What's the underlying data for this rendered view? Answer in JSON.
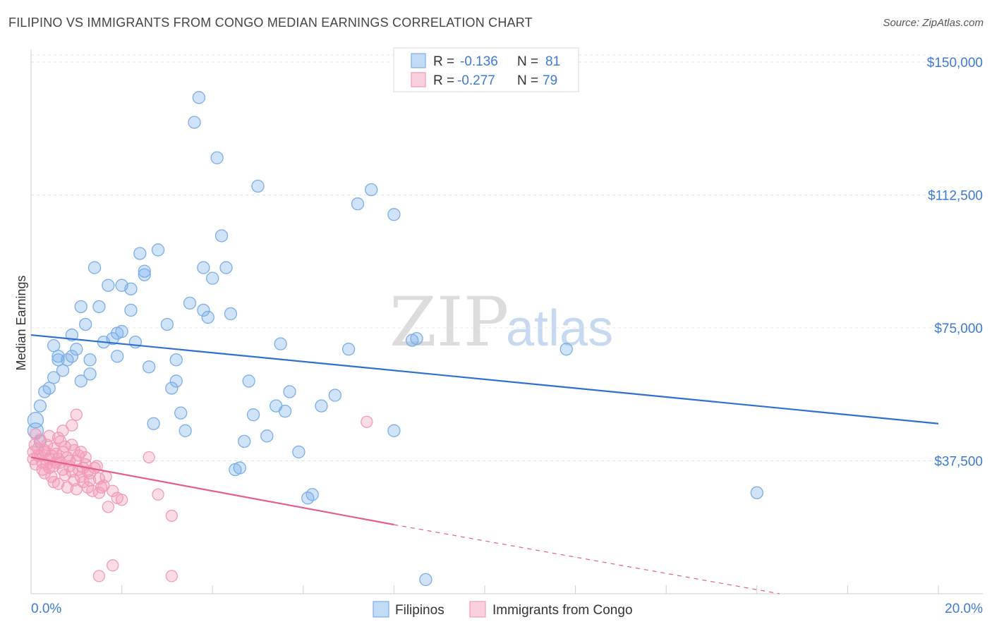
{
  "title": "FILIPINO VS IMMIGRANTS FROM CONGO MEDIAN EARNINGS CORRELATION CHART",
  "source": "Source: ZipAtlas.com",
  "watermark": {
    "part1": "ZIP",
    "part2": "atlas"
  },
  "legend": {
    "r_label": "R =",
    "n_label": "N =",
    "series": [
      {
        "r": "-0.136",
        "n": "81",
        "color": "#7aaee8"
      },
      {
        "r": "-0.277",
        "n": "79",
        "color": "#f29ab8"
      }
    ]
  },
  "bottom_legend": [
    "Filipinos",
    "Immigrants from Congo"
  ],
  "chart_data": {
    "type": "scatter",
    "title": "FILIPINO VS IMMIGRANTS FROM CONGO MEDIAN EARNINGS CORRELATION CHART",
    "xlabel": "",
    "ylabel": "Median Earnings",
    "xlim": [
      0,
      20
    ],
    "ylim": [
      0,
      152000
    ],
    "x_tick_labels": [
      "0.0%",
      "20.0%"
    ],
    "y_ticks": [
      37500,
      75000,
      112500,
      150000
    ],
    "y_tick_labels": [
      "$37,500",
      "$75,000",
      "$112,500",
      "$150,000"
    ],
    "grid": true,
    "legend_position": "top-center",
    "series": [
      {
        "name": "Filipinos",
        "color": "#7aaee8",
        "line_color": "#2f6fd0",
        "r": -0.136,
        "n": 81,
        "trend": {
          "x": [
            0,
            20
          ],
          "y": [
            73000,
            48000
          ]
        },
        "points": [
          {
            "x": 0.1,
            "y": 49000
          },
          {
            "x": 0.1,
            "y": 46000
          },
          {
            "x": 0.2,
            "y": 53000
          },
          {
            "x": 0.3,
            "y": 57000
          },
          {
            "x": 0.4,
            "y": 58000
          },
          {
            "x": 0.5,
            "y": 61000
          },
          {
            "x": 0.6,
            "y": 67000
          },
          {
            "x": 0.7,
            "y": 63000
          },
          {
            "x": 0.8,
            "y": 66000
          },
          {
            "x": 0.9,
            "y": 73000
          },
          {
            "x": 0.9,
            "y": 67000
          },
          {
            "x": 1.0,
            "y": 69000
          },
          {
            "x": 1.1,
            "y": 60000
          },
          {
            "x": 1.2,
            "y": 76000
          },
          {
            "x": 1.3,
            "y": 66000
          },
          {
            "x": 1.4,
            "y": 92000
          },
          {
            "x": 1.5,
            "y": 81000
          },
          {
            "x": 1.6,
            "y": 71000
          },
          {
            "x": 1.7,
            "y": 87000
          },
          {
            "x": 1.8,
            "y": 72000
          },
          {
            "x": 1.9,
            "y": 67000
          },
          {
            "x": 2.0,
            "y": 74000
          },
          {
            "x": 2.0,
            "y": 87000
          },
          {
            "x": 2.2,
            "y": 80000
          },
          {
            "x": 2.3,
            "y": 71000
          },
          {
            "x": 2.4,
            "y": 96000
          },
          {
            "x": 2.5,
            "y": 91000
          },
          {
            "x": 2.6,
            "y": 64000
          },
          {
            "x": 2.7,
            "y": 48000
          },
          {
            "x": 2.8,
            "y": 97000
          },
          {
            "x": 3.0,
            "y": 76000
          },
          {
            "x": 3.1,
            "y": 58000
          },
          {
            "x": 3.2,
            "y": 60000
          },
          {
            "x": 3.3,
            "y": 51000
          },
          {
            "x": 3.4,
            "y": 46000
          },
          {
            "x": 3.5,
            "y": 82000
          },
          {
            "x": 3.6,
            "y": 133000
          },
          {
            "x": 3.7,
            "y": 140000
          },
          {
            "x": 3.8,
            "y": 80000
          },
          {
            "x": 3.8,
            "y": 92000
          },
          {
            "x": 3.9,
            "y": 78000
          },
          {
            "x": 4.0,
            "y": 89000
          },
          {
            "x": 4.1,
            "y": 123000
          },
          {
            "x": 4.2,
            "y": 101000
          },
          {
            "x": 4.3,
            "y": 92000
          },
          {
            "x": 4.4,
            "y": 79000
          },
          {
            "x": 4.5,
            "y": 35000
          },
          {
            "x": 4.6,
            "y": 35500
          },
          {
            "x": 4.7,
            "y": 43000
          },
          {
            "x": 4.8,
            "y": 60000
          },
          {
            "x": 4.9,
            "y": 50500
          },
          {
            "x": 5.0,
            "y": 115000
          },
          {
            "x": 5.2,
            "y": 44500
          },
          {
            "x": 5.4,
            "y": 53000
          },
          {
            "x": 5.5,
            "y": 70500
          },
          {
            "x": 5.6,
            "y": 51500
          },
          {
            "x": 5.7,
            "y": 57000
          },
          {
            "x": 5.9,
            "y": 40000
          },
          {
            "x": 6.1,
            "y": 27000
          },
          {
            "x": 6.2,
            "y": 28000
          },
          {
            "x": 6.4,
            "y": 53000
          },
          {
            "x": 6.7,
            "y": 56000
          },
          {
            "x": 7.0,
            "y": 69000
          },
          {
            "x": 7.2,
            "y": 110000
          },
          {
            "x": 7.5,
            "y": 114000
          },
          {
            "x": 8.0,
            "y": 107000
          },
          {
            "x": 8.0,
            "y": 46000
          },
          {
            "x": 8.4,
            "y": 71500
          },
          {
            "x": 8.5,
            "y": 72000
          },
          {
            "x": 8.7,
            "y": 4000
          },
          {
            "x": 11.8,
            "y": 69000
          },
          {
            "x": 16.0,
            "y": 28500
          },
          {
            "x": 0.2,
            "y": 43000
          },
          {
            "x": 0.6,
            "y": 66000
          },
          {
            "x": 1.3,
            "y": 62000
          },
          {
            "x": 1.9,
            "y": 73500
          },
          {
            "x": 2.2,
            "y": 86000
          },
          {
            "x": 3.2,
            "y": 66000
          },
          {
            "x": 0.5,
            "y": 70000
          },
          {
            "x": 1.1,
            "y": 81000
          },
          {
            "x": 2.5,
            "y": 90000
          }
        ]
      },
      {
        "name": "Immigrants from Congo",
        "color": "#f29ab8",
        "line_color": "#e45d8e",
        "r": -0.277,
        "n": 79,
        "trend": {
          "x": [
            0,
            8
          ],
          "y": [
            38500,
            19500
          ]
        },
        "trend_dashed": {
          "x": [
            8,
            16.5
          ],
          "y": [
            19500,
            -500
          ]
        },
        "points": [
          {
            "x": 0.05,
            "y": 40000
          },
          {
            "x": 0.05,
            "y": 38000
          },
          {
            "x": 0.08,
            "y": 42000
          },
          {
            "x": 0.1,
            "y": 45000
          },
          {
            "x": 0.1,
            "y": 36500
          },
          {
            "x": 0.15,
            "y": 41000
          },
          {
            "x": 0.2,
            "y": 39000
          },
          {
            "x": 0.2,
            "y": 43500
          },
          {
            "x": 0.25,
            "y": 37000
          },
          {
            "x": 0.3,
            "y": 34000
          },
          {
            "x": 0.3,
            "y": 40500
          },
          {
            "x": 0.35,
            "y": 42000
          },
          {
            "x": 0.4,
            "y": 38000
          },
          {
            "x": 0.4,
            "y": 35500
          },
          {
            "x": 0.45,
            "y": 33000
          },
          {
            "x": 0.5,
            "y": 41000
          },
          {
            "x": 0.5,
            "y": 36000
          },
          {
            "x": 0.55,
            "y": 39500
          },
          {
            "x": 0.6,
            "y": 31000
          },
          {
            "x": 0.6,
            "y": 44000
          },
          {
            "x": 0.65,
            "y": 37000
          },
          {
            "x": 0.7,
            "y": 35000
          },
          {
            "x": 0.7,
            "y": 40000
          },
          {
            "x": 0.75,
            "y": 33500
          },
          {
            "x": 0.8,
            "y": 38500
          },
          {
            "x": 0.8,
            "y": 30000
          },
          {
            "x": 0.85,
            "y": 36000
          },
          {
            "x": 0.9,
            "y": 42000
          },
          {
            "x": 0.9,
            "y": 34500
          },
          {
            "x": 0.95,
            "y": 32000
          },
          {
            "x": 1.0,
            "y": 37500
          },
          {
            "x": 1.0,
            "y": 29500
          },
          {
            "x": 1.05,
            "y": 35000
          },
          {
            "x": 1.1,
            "y": 40000
          },
          {
            "x": 1.1,
            "y": 33000
          },
          {
            "x": 1.15,
            "y": 31500
          },
          {
            "x": 1.2,
            "y": 36500
          },
          {
            "x": 1.25,
            "y": 30000
          },
          {
            "x": 1.3,
            "y": 34000
          },
          {
            "x": 1.35,
            "y": 29000
          },
          {
            "x": 1.4,
            "y": 35500
          },
          {
            "x": 1.5,
            "y": 32500
          },
          {
            "x": 1.5,
            "y": 28500
          },
          {
            "x": 1.6,
            "y": 30500
          },
          {
            "x": 1.7,
            "y": 24500
          },
          {
            "x": 1.8,
            "y": 29000
          },
          {
            "x": 1.9,
            "y": 27000
          },
          {
            "x": 2.0,
            "y": 26500
          },
          {
            "x": 1.45,
            "y": 36000
          },
          {
            "x": 1.65,
            "y": 33000
          },
          {
            "x": 1.0,
            "y": 50500
          },
          {
            "x": 0.7,
            "y": 46000
          },
          {
            "x": 0.9,
            "y": 47500
          },
          {
            "x": 0.4,
            "y": 44500
          },
          {
            "x": 1.2,
            "y": 38500
          },
          {
            "x": 2.6,
            "y": 38500
          },
          {
            "x": 2.8,
            "y": 28000
          },
          {
            "x": 3.1,
            "y": 22000
          },
          {
            "x": 3.1,
            "y": 5000
          },
          {
            "x": 1.8,
            "y": 8000
          },
          {
            "x": 1.5,
            "y": 5000
          },
          {
            "x": 7.4,
            "y": 48500
          },
          {
            "x": 0.3,
            "y": 40000
          },
          {
            "x": 0.55,
            "y": 37000
          },
          {
            "x": 0.75,
            "y": 41500
          },
          {
            "x": 0.15,
            "y": 39000
          },
          {
            "x": 0.25,
            "y": 35000
          },
          {
            "x": 0.45,
            "y": 39000
          },
          {
            "x": 0.65,
            "y": 43000
          },
          {
            "x": 0.85,
            "y": 37500
          },
          {
            "x": 1.05,
            "y": 39000
          },
          {
            "x": 1.3,
            "y": 32000
          },
          {
            "x": 0.35,
            "y": 36500
          },
          {
            "x": 0.5,
            "y": 31500
          },
          {
            "x": 1.15,
            "y": 35500
          },
          {
            "x": 0.6,
            "y": 38000
          },
          {
            "x": 0.95,
            "y": 40500
          },
          {
            "x": 1.25,
            "y": 34500
          },
          {
            "x": 1.55,
            "y": 30000
          }
        ]
      }
    ]
  }
}
